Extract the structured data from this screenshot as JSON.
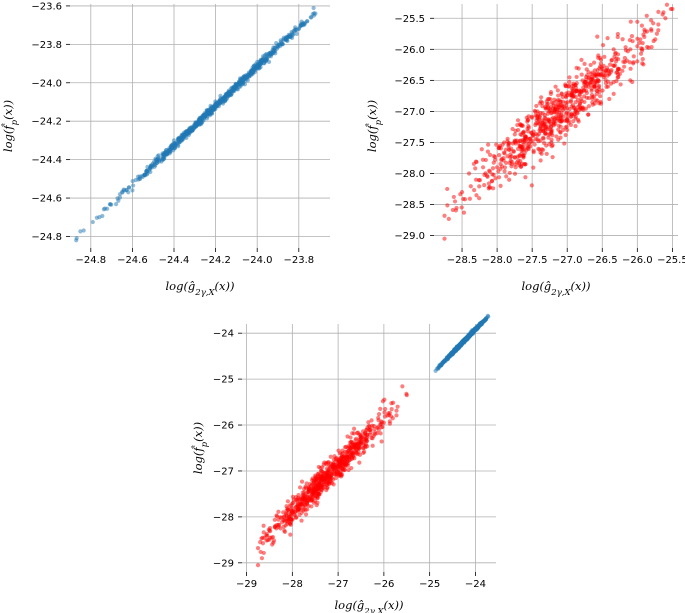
{
  "chart_data": [
    {
      "type": "scatter",
      "title": "",
      "xlabel": "log(ĝ_{2γ,X}(x))",
      "ylabel": "log(f̂_p(x))",
      "xlim": [
        -24.9,
        -23.65
      ],
      "ylim": [
        -24.86,
        -23.59
      ],
      "xticks": [
        -24.8,
        -24.6,
        -24.4,
        -24.2,
        -24.0,
        -23.8
      ],
      "xtick_labels": [
        "−24.8",
        "−24.6",
        "−24.4",
        "−24.2",
        "−24.0",
        "−23.8"
      ],
      "yticks": [
        -24.8,
        -24.6,
        -24.4,
        -24.2,
        -24.0,
        -23.8,
        -23.6
      ],
      "ytick_labels": [
        "−24.8",
        "−24.6",
        "−24.4",
        "−24.2",
        "−24.0",
        "−23.8",
        "−23.6"
      ],
      "grid": true,
      "series": [
        {
          "color": "#1f77b4",
          "points": [
            [
              -24.87,
              -24.82
            ],
            [
              -24.66,
              -24.58
            ],
            [
              -24.64,
              -24.56
            ],
            [
              -24.62,
              -24.57
            ],
            [
              -24.6,
              -24.56
            ],
            [
              -24.55,
              -24.49
            ],
            [
              -24.53,
              -24.46
            ],
            [
              -24.51,
              -24.43
            ],
            [
              -24.48,
              -24.4
            ],
            [
              -24.46,
              -24.41
            ],
            [
              -24.44,
              -24.36
            ],
            [
              -24.42,
              -24.35
            ],
            [
              -24.4,
              -24.3
            ],
            [
              -24.38,
              -24.33
            ],
            [
              -24.36,
              -24.27
            ],
            [
              -24.34,
              -24.27
            ],
            [
              -24.32,
              -24.24
            ],
            [
              -24.3,
              -24.22
            ],
            [
              -24.28,
              -24.2
            ],
            [
              -24.26,
              -24.17
            ],
            [
              -24.24,
              -24.16
            ],
            [
              -24.22,
              -24.13
            ],
            [
              -24.2,
              -24.12
            ],
            [
              -24.18,
              -24.09
            ],
            [
              -24.16,
              -24.08
            ],
            [
              -24.14,
              -24.05
            ],
            [
              -24.12,
              -24.04
            ],
            [
              -24.1,
              -24.01
            ],
            [
              -24.08,
              -24.0
            ],
            [
              -24.06,
              -23.97
            ],
            [
              -24.04,
              -23.96
            ],
            [
              -24.02,
              -23.93
            ],
            [
              -24.0,
              -23.92
            ],
            [
              -23.98,
              -23.89
            ],
            [
              -23.96,
              -23.88
            ],
            [
              -23.94,
              -23.85
            ],
            [
              -23.92,
              -23.84
            ],
            [
              -23.9,
              -23.81
            ],
            [
              -23.88,
              -23.8
            ],
            [
              -23.86,
              -23.77
            ],
            [
              -23.84,
              -23.76
            ],
            [
              -23.82,
              -23.73
            ],
            [
              -23.8,
              -23.72
            ],
            [
              -23.78,
              -23.7
            ],
            [
              -23.76,
              -23.68
            ],
            [
              -23.74,
              -23.66
            ],
            [
              -23.72,
              -23.64
            ]
          ]
        }
      ]
    },
    {
      "type": "scatter",
      "title": "",
      "xlabel": "log(ĝ_{2γ,X}(x))",
      "ylabel": "log(f̂_p(x))",
      "xlim": [
        -28.9,
        -25.42
      ],
      "ylim": [
        -29.2,
        -25.27
      ],
      "xticks": [
        -28.5,
        -28.0,
        -27.5,
        -27.0,
        -26.5,
        -26.0,
        -25.5
      ],
      "xtick_labels": [
        "−28.5",
        "−28.0",
        "−27.5",
        "−27.0",
        "−26.5",
        "−26.0",
        "−25.5"
      ],
      "yticks": [
        -29.0,
        -28.5,
        -28.0,
        -27.5,
        -27.0,
        -26.5,
        -26.0,
        -25.5
      ],
      "ytick_labels": [
        "−29.0",
        "−28.5",
        "−28.0",
        "−27.5",
        "−27.0",
        "−26.5",
        "−26.0",
        "−25.5"
      ],
      "grid": true,
      "series": [
        {
          "color": "#ff0000",
          "points": [
            [
              -28.75,
              -29.05
            ],
            [
              -28.75,
              -28.68
            ],
            [
              -28.6,
              -28.45
            ],
            [
              -28.5,
              -28.3
            ],
            [
              -28.4,
              -28.0
            ],
            [
              -28.3,
              -28.1
            ],
            [
              -28.2,
              -27.9
            ],
            [
              -28.1,
              -27.7
            ],
            [
              -28.0,
              -27.9
            ],
            [
              -27.9,
              -27.5
            ],
            [
              -27.8,
              -27.6
            ],
            [
              -27.7,
              -27.3
            ],
            [
              -27.6,
              -27.4
            ],
            [
              -27.5,
              -27.1
            ],
            [
              -27.4,
              -27.2
            ],
            [
              -27.3,
              -26.95
            ],
            [
              -27.2,
              -27.1
            ],
            [
              -27.1,
              -26.85
            ],
            [
              -27.0,
              -26.95
            ],
            [
              -26.9,
              -26.7
            ],
            [
              -26.8,
              -26.8
            ],
            [
              -26.7,
              -26.55
            ],
            [
              -26.6,
              -26.6
            ],
            [
              -26.5,
              -26.35
            ],
            [
              -26.4,
              -26.4
            ],
            [
              -26.3,
              -26.15
            ],
            [
              -26.2,
              -26.2
            ],
            [
              -26.1,
              -26.0
            ],
            [
              -26.0,
              -25.95
            ],
            [
              -25.9,
              -25.8
            ],
            [
              -25.8,
              -25.7
            ],
            [
              -25.7,
              -25.6
            ],
            [
              -25.6,
              -25.5
            ],
            [
              -25.5,
              -25.35
            ],
            [
              -27.95,
              -28.2
            ],
            [
              -27.6,
              -27.85
            ],
            [
              -27.3,
              -27.55
            ],
            [
              -27.0,
              -27.3
            ],
            [
              -26.7,
              -27.05
            ],
            [
              -26.4,
              -26.8
            ],
            [
              -26.1,
              -26.5
            ]
          ]
        }
      ]
    },
    {
      "type": "scatter",
      "title": "",
      "xlabel": "log(ĝ_{2γ,X}(x))",
      "ylabel": "log(f̂_p(x))",
      "xlim": [
        -29.1,
        -23.55
      ],
      "ylim": [
        -29.2,
        -23.8
      ],
      "xticks": [
        -29,
        -28,
        -27,
        -26,
        -25,
        -24
      ],
      "xtick_labels": [
        "−29",
        "−28",
        "−27",
        "−26",
        "−25",
        "−24"
      ],
      "yticks": [
        -29,
        -28,
        -27,
        -26,
        -25,
        -24
      ],
      "ytick_labels": [
        "−29",
        "−28",
        "−27",
        "−26",
        "−25",
        "−24"
      ],
      "grid": true,
      "series": [
        {
          "color": "#ff0000",
          "points": [
            [
              -28.75,
              -29.05
            ],
            [
              -28.75,
              -28.68
            ],
            [
              -28.5,
              -28.3
            ],
            [
              -28.2,
              -27.9
            ],
            [
              -28.0,
              -27.9
            ],
            [
              -27.8,
              -27.6
            ],
            [
              -27.5,
              -27.1
            ],
            [
              -27.2,
              -27.1
            ],
            [
              -27.0,
              -26.95
            ],
            [
              -26.8,
              -26.8
            ],
            [
              -26.5,
              -26.35
            ],
            [
              -26.2,
              -26.2
            ],
            [
              -26.0,
              -25.95
            ],
            [
              -25.7,
              -25.6
            ],
            [
              -25.5,
              -25.35
            ]
          ]
        },
        {
          "color": "#1f77b4",
          "points": [
            [
              -24.87,
              -24.82
            ],
            [
              -24.66,
              -24.58
            ],
            [
              -24.6,
              -24.56
            ],
            [
              -24.5,
              -24.42
            ],
            [
              -24.4,
              -24.3
            ],
            [
              -24.3,
              -24.22
            ],
            [
              -24.2,
              -24.12
            ],
            [
              -24.1,
              -24.01
            ],
            [
              -24.0,
              -23.92
            ],
            [
              -23.9,
              -23.81
            ],
            [
              -23.8,
              -23.72
            ],
            [
              -23.72,
              -23.64
            ]
          ]
        }
      ]
    }
  ]
}
